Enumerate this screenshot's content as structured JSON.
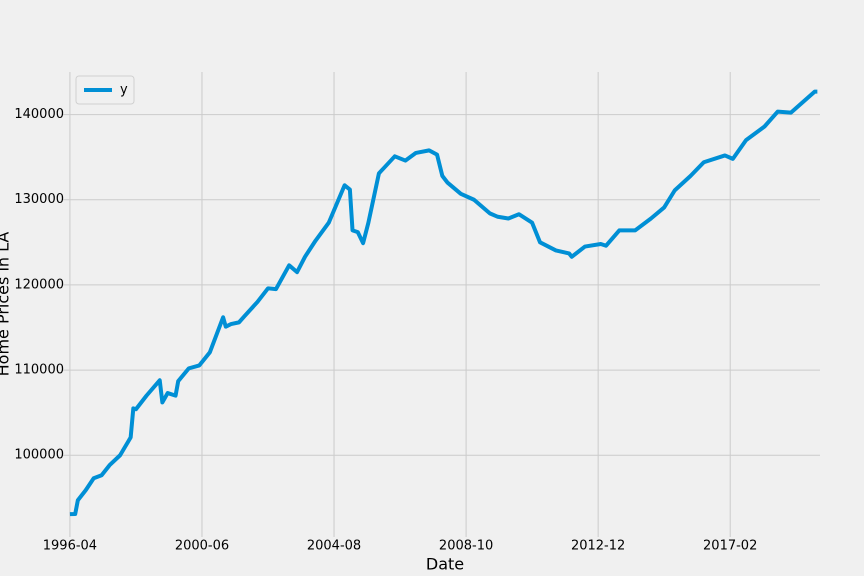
{
  "chart_data": {
    "type": "line",
    "x_label": "Date",
    "y_label": "Home Prices in LA",
    "x": [
      "1996-04",
      "1996-06",
      "1996-07",
      "1996-10",
      "1997-01",
      "1997-04",
      "1997-07",
      "1997-11",
      "1998-03",
      "1998-04",
      "1998-05",
      "1998-09",
      "1999-02",
      "1999-03",
      "1999-05",
      "1999-08",
      "1999-09",
      "2000-01",
      "2000-05",
      "2000-09",
      "2001-02",
      "2001-03",
      "2001-05",
      "2001-08",
      "2001-10",
      "2002-03",
      "2002-07",
      "2002-10",
      "2003-03",
      "2003-06",
      "2003-09",
      "2004-01",
      "2004-06",
      "2004-12",
      "2005-02",
      "2005-03",
      "2005-05",
      "2005-07",
      "2005-09",
      "2006-01",
      "2006-07",
      "2006-11",
      "2007-03",
      "2007-08",
      "2007-11",
      "2008-01",
      "2008-03",
      "2008-08",
      "2009-01",
      "2009-07",
      "2009-10",
      "2010-02",
      "2010-06",
      "2010-11",
      "2011-02",
      "2011-08",
      "2012-01",
      "2012-02",
      "2012-07",
      "2013-01",
      "2013-03",
      "2013-08",
      "2014-02",
      "2014-08",
      "2015-01",
      "2015-05",
      "2015-11",
      "2016-04",
      "2016-12",
      "2017-03",
      "2017-08",
      "2018-03",
      "2018-08",
      "2019-01",
      "2019-10",
      "2019-11"
    ],
    "series": [
      {
        "name": "y",
        "color": "#008fd5",
        "values": [
          93080,
          93100,
          94720,
          95900,
          97300,
          97650,
          98830,
          100000,
          102100,
          105500,
          105400,
          107000,
          108800,
          106200,
          107300,
          107000,
          108700,
          110200,
          110550,
          112100,
          116200,
          115100,
          115400,
          115600,
          116300,
          118000,
          119600,
          119500,
          122300,
          121500,
          123300,
          125200,
          127300,
          131700,
          131200,
          126400,
          126200,
          124900,
          127300,
          133100,
          135100,
          134600,
          135500,
          135800,
          135300,
          132800,
          132000,
          130700,
          130000,
          128400,
          128000,
          127800,
          128300,
          127300,
          125000,
          124050,
          123700,
          123300,
          124500,
          124800,
          124600,
          126400,
          126400,
          127800,
          129100,
          131100,
          132800,
          134400,
          135200,
          134800,
          137000,
          138600,
          140350,
          140230,
          142700,
          142700
        ]
      }
    ],
    "xlim": [
      "1996-01",
      "2019-12"
    ],
    "xticks": [
      "1996-04",
      "2000-06",
      "2004-08",
      "2008-10",
      "2012-12",
      "2017-02"
    ],
    "ylim": [
      90400,
      145000
    ],
    "yticks": [
      100000,
      110000,
      120000,
      130000,
      140000
    ],
    "grid": true,
    "legend": "upper left"
  }
}
